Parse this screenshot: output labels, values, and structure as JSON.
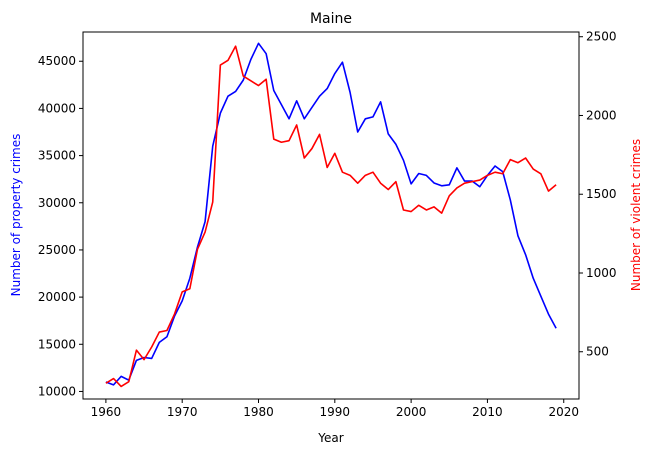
{
  "chart_data": {
    "type": "line",
    "title": "Maine",
    "xlabel": "Year",
    "ylabel_left": "Number of property crimes",
    "ylabel_right": "Number of violent crimes",
    "xlim": [
      1957,
      2022
    ],
    "ylim_left": [
      9200,
      48100
    ],
    "ylim_right": [
      200,
      2530
    ],
    "x_ticks": [
      "1960",
      "1970",
      "1980",
      "1990",
      "2000",
      "2010",
      "2020"
    ],
    "y_left_ticks": [
      "10000",
      "15000",
      "20000",
      "25000",
      "30000",
      "35000",
      "40000",
      "45000"
    ],
    "y_right_ticks": [
      "500",
      "1000",
      "1500",
      "2000",
      "2500"
    ],
    "grid": false,
    "colors": {
      "property": "#0000ff",
      "violent": "#ff0000",
      "axes": "#000000"
    },
    "series": [
      {
        "key": "property",
        "axis": "left",
        "x": [
          1960,
          1961,
          1962,
          1963,
          1964,
          1965,
          1966,
          1967,
          1968,
          1969,
          1970,
          1971,
          1972,
          1973,
          1974,
          1975,
          1976,
          1977,
          1978,
          1979,
          1980,
          1981,
          1982,
          1983,
          1984,
          1985,
          1986,
          1987,
          1988,
          1989,
          1990,
          1991,
          1992,
          1993,
          1994,
          1995,
          1996,
          1997,
          1998,
          1999,
          2000,
          2001,
          2002,
          2003,
          2004,
          2005,
          2006,
          2007,
          2008,
          2009,
          2010,
          2011,
          2012,
          2013,
          2014,
          2015,
          2016,
          2017,
          2018,
          2019
        ],
        "values": [
          11000,
          10700,
          11600,
          11200,
          13300,
          13600,
          13500,
          15200,
          15800,
          18000,
          19600,
          22000,
          25300,
          28000,
          36000,
          39500,
          41300,
          41800,
          43000,
          45200,
          46900,
          45800,
          41900,
          40400,
          38900,
          40800,
          38900,
          40100,
          41300,
          42100,
          43700,
          44900,
          41700,
          37500,
          38900,
          39100,
          40700,
          37300,
          36200,
          34500,
          32000,
          33100,
          32900,
          32100,
          31800,
          31900,
          33700,
          32300,
          32300,
          31700,
          32900,
          33900,
          33300,
          30300,
          26500,
          24500,
          22000,
          20100,
          18200,
          16700
        ]
      },
      {
        "key": "violent",
        "axis": "right",
        "x": [
          1960,
          1961,
          1962,
          1963,
          1964,
          1965,
          1966,
          1967,
          1968,
          1969,
          1970,
          1971,
          1972,
          1973,
          1974,
          1975,
          1976,
          1977,
          1978,
          1979,
          1980,
          1981,
          1982,
          1983,
          1984,
          1985,
          1986,
          1987,
          1988,
          1989,
          1990,
          1991,
          1992,
          1993,
          1994,
          1995,
          1996,
          1997,
          1998,
          1999,
          2000,
          2001,
          2002,
          2003,
          2004,
          2005,
          2006,
          2007,
          2008,
          2009,
          2010,
          2011,
          2012,
          2013,
          2014,
          2015,
          2016,
          2017,
          2018,
          2019
        ],
        "values": [
          300,
          330,
          280,
          310,
          510,
          450,
          530,
          625,
          635,
          740,
          880,
          900,
          1150,
          1260,
          1450,
          2320,
          2350,
          2440,
          2250,
          2220,
          2190,
          2230,
          1850,
          1830,
          1840,
          1940,
          1730,
          1790,
          1880,
          1670,
          1760,
          1640,
          1620,
          1570,
          1620,
          1640,
          1570,
          1530,
          1580,
          1400,
          1390,
          1430,
          1400,
          1420,
          1380,
          1490,
          1540,
          1570,
          1580,
          1590,
          1620,
          1640,
          1630,
          1720,
          1700,
          1730,
          1660,
          1630,
          1520,
          1560
        ]
      }
    ]
  }
}
